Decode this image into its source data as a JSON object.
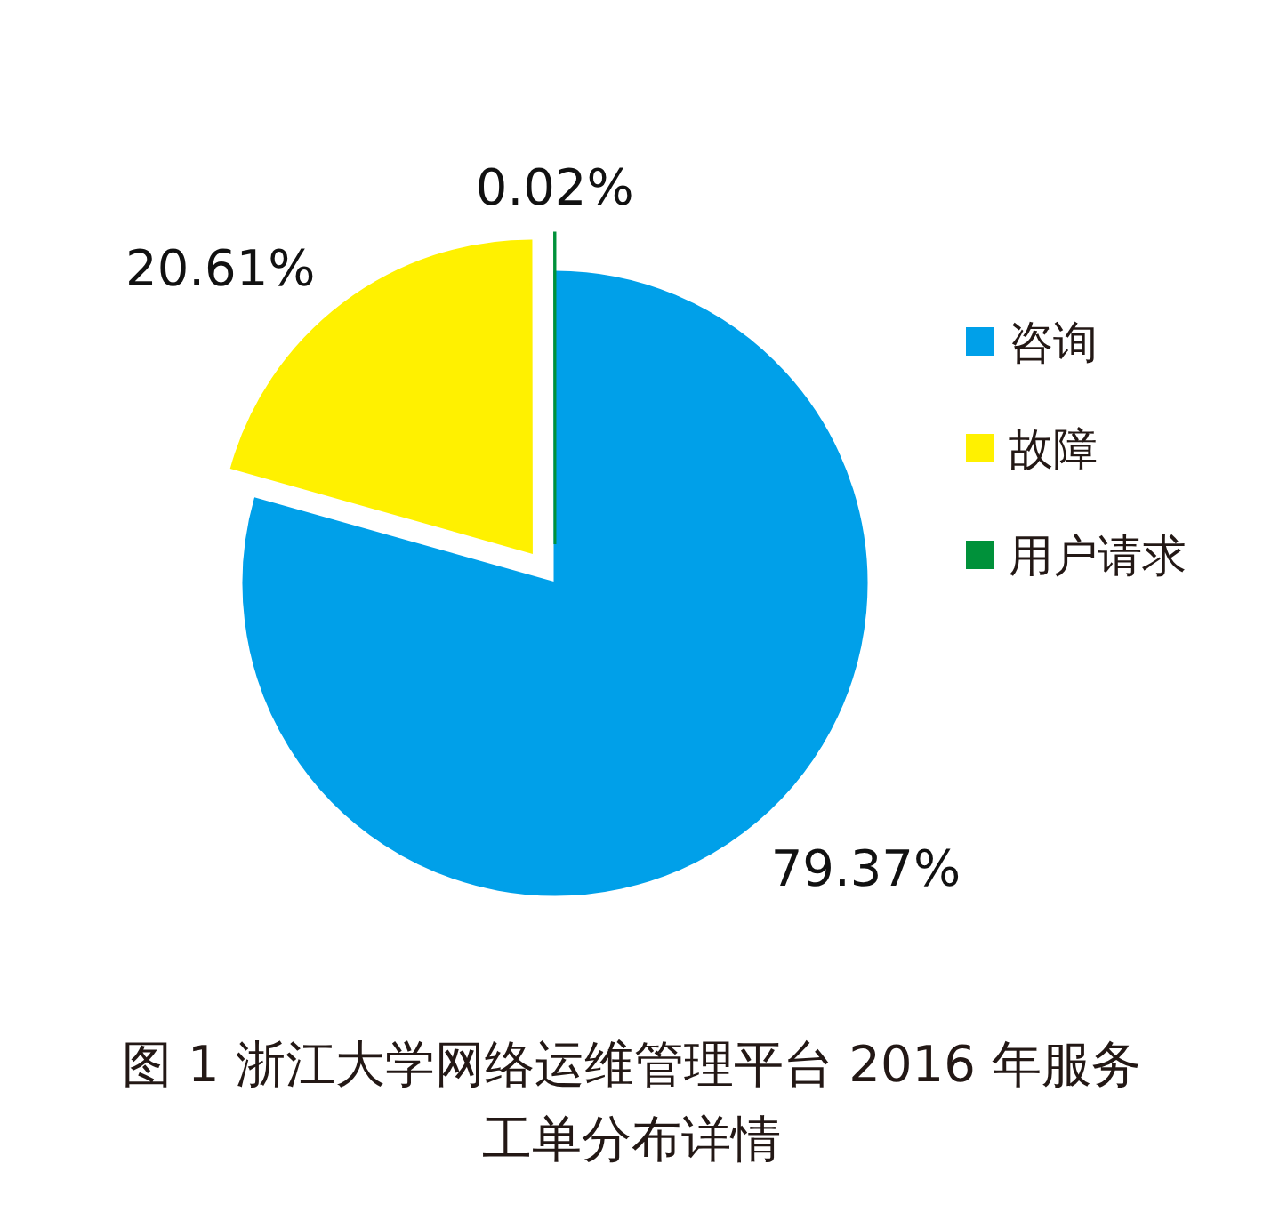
{
  "chart_data": {
    "type": "pie",
    "title": "图 1 浙江大学网络运维管理平台 2016 年服务工单分布详情",
    "categories": [
      "咨询",
      "故障",
      "用户请求"
    ],
    "values": [
      79.37,
      20.61,
      0.02
    ],
    "colors": [
      "#00a0e9",
      "#fff100",
      "#00913a"
    ],
    "value_labels": [
      "79.37%",
      "20.61%",
      "0.02%"
    ],
    "legend": "right"
  }
}
